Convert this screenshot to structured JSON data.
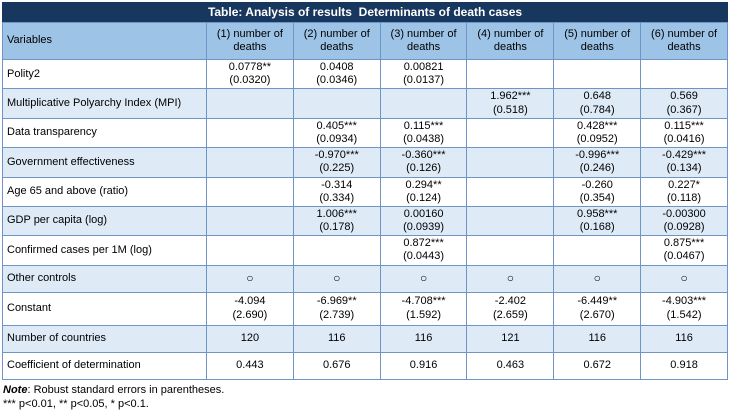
{
  "title": "Table: Analysis of results  Determinants of death cases",
  "colors": {
    "title_bar_bg": "#17375E",
    "title_bar_text": "#FFFFFF",
    "header_bg": "#9DC3E6",
    "stripe_bg": "#DEEBF7",
    "border": "#6E95C5",
    "outer_border": "#1F3864"
  },
  "table": {
    "header": [
      "Variables",
      "(1) number of deaths",
      "(2) number of deaths",
      "(3) number of deaths",
      "(4) number of deaths",
      "(5) number of deaths",
      "(6) number of deaths"
    ],
    "rows": [
      {
        "label": "Polity2",
        "cells": [
          "0.0778**\n(0.0320)",
          "0.0408\n(0.0346)",
          "0.00821\n(0.0137)",
          "",
          "",
          ""
        ]
      },
      {
        "label": "Multiplicative Polyarchy Index (MPI)",
        "cells": [
          "",
          "",
          "",
          "1.962***\n(0.518)",
          "0.648\n(0.784)",
          "0.569\n(0.367)"
        ]
      },
      {
        "label": "Data transparency",
        "cells": [
          "",
          "0.405***\n(0.0934)",
          "0.115***\n(0.0438)",
          "",
          "0.428***\n(0.0952)",
          "0.115***\n(0.0416)"
        ]
      },
      {
        "label": "Government effectiveness",
        "cells": [
          "",
          "-0.970***\n(0.225)",
          "-0.360***\n(0.126)",
          "",
          "-0.996***\n(0.246)",
          "-0.429***\n(0.134)"
        ]
      },
      {
        "label": "Age 65 and above (ratio)",
        "cells": [
          "",
          "-0.314\n(0.334)",
          "0.294**\n(0.124)",
          "",
          "-0.260\n(0.354)",
          "0.227*\n(0.118)"
        ]
      },
      {
        "label": "GDP per capita (log)",
        "cells": [
          "",
          "1.006***\n(0.178)",
          "0.00160\n(0.0939)",
          "",
          "0.958***\n(0.168)",
          "-0.00300\n(0.0928)"
        ]
      },
      {
        "label": "Confirmed cases per 1M (log)",
        "cells": [
          "",
          "",
          "0.872***\n(0.0443)",
          "",
          "",
          "0.875***\n(0.0467)"
        ]
      },
      {
        "label": "Other controls",
        "circle": true,
        "cells": [
          "○",
          "○",
          "○",
          "○",
          "○",
          "○"
        ]
      },
      {
        "label": "Constant",
        "tall": true,
        "cells": [
          "-4.094\n(2.690)",
          "-6.969**\n(2.739)",
          "-4.708***\n(1.592)",
          "-2.402\n(2.659)",
          "-6.449**\n(2.670)",
          "-4.903***\n(1.542)"
        ]
      },
      {
        "label": "Number of countries",
        "cells": [
          "120",
          "116",
          "116",
          "121",
          "116",
          "116"
        ]
      },
      {
        "label": "Coefficient of determination",
        "cells": [
          "0.443",
          "0.676",
          "0.916",
          "0.463",
          "0.672",
          "0.918"
        ]
      }
    ]
  },
  "notes": {
    "label": "Note",
    "text": ": Robust standard errors in parentheses.",
    "significance": "*** p<0.01, ** p<0.05, * p<0.1."
  }
}
